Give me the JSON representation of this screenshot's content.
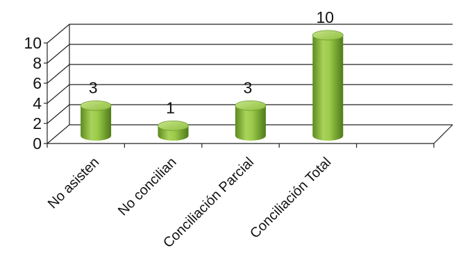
{
  "chart_data": {
    "type": "bar",
    "style": "3d-cylinder",
    "categories": [
      "No asisten",
      "No concilian",
      "Conciliación Parcial",
      "Conciliación Total"
    ],
    "values": [
      3,
      1,
      3,
      10
    ],
    "data_labels": [
      "3",
      "1",
      "3",
      "10"
    ],
    "ylim": [
      0,
      10
    ],
    "yticks": [
      "0",
      "2",
      "4",
      "6",
      "8",
      "10"
    ],
    "grid": true,
    "legend": "none",
    "bar_color": "#8dbb3e",
    "bar_shadow_color": "#5a8020",
    "bar_highlight_color": "#c9e58a"
  }
}
